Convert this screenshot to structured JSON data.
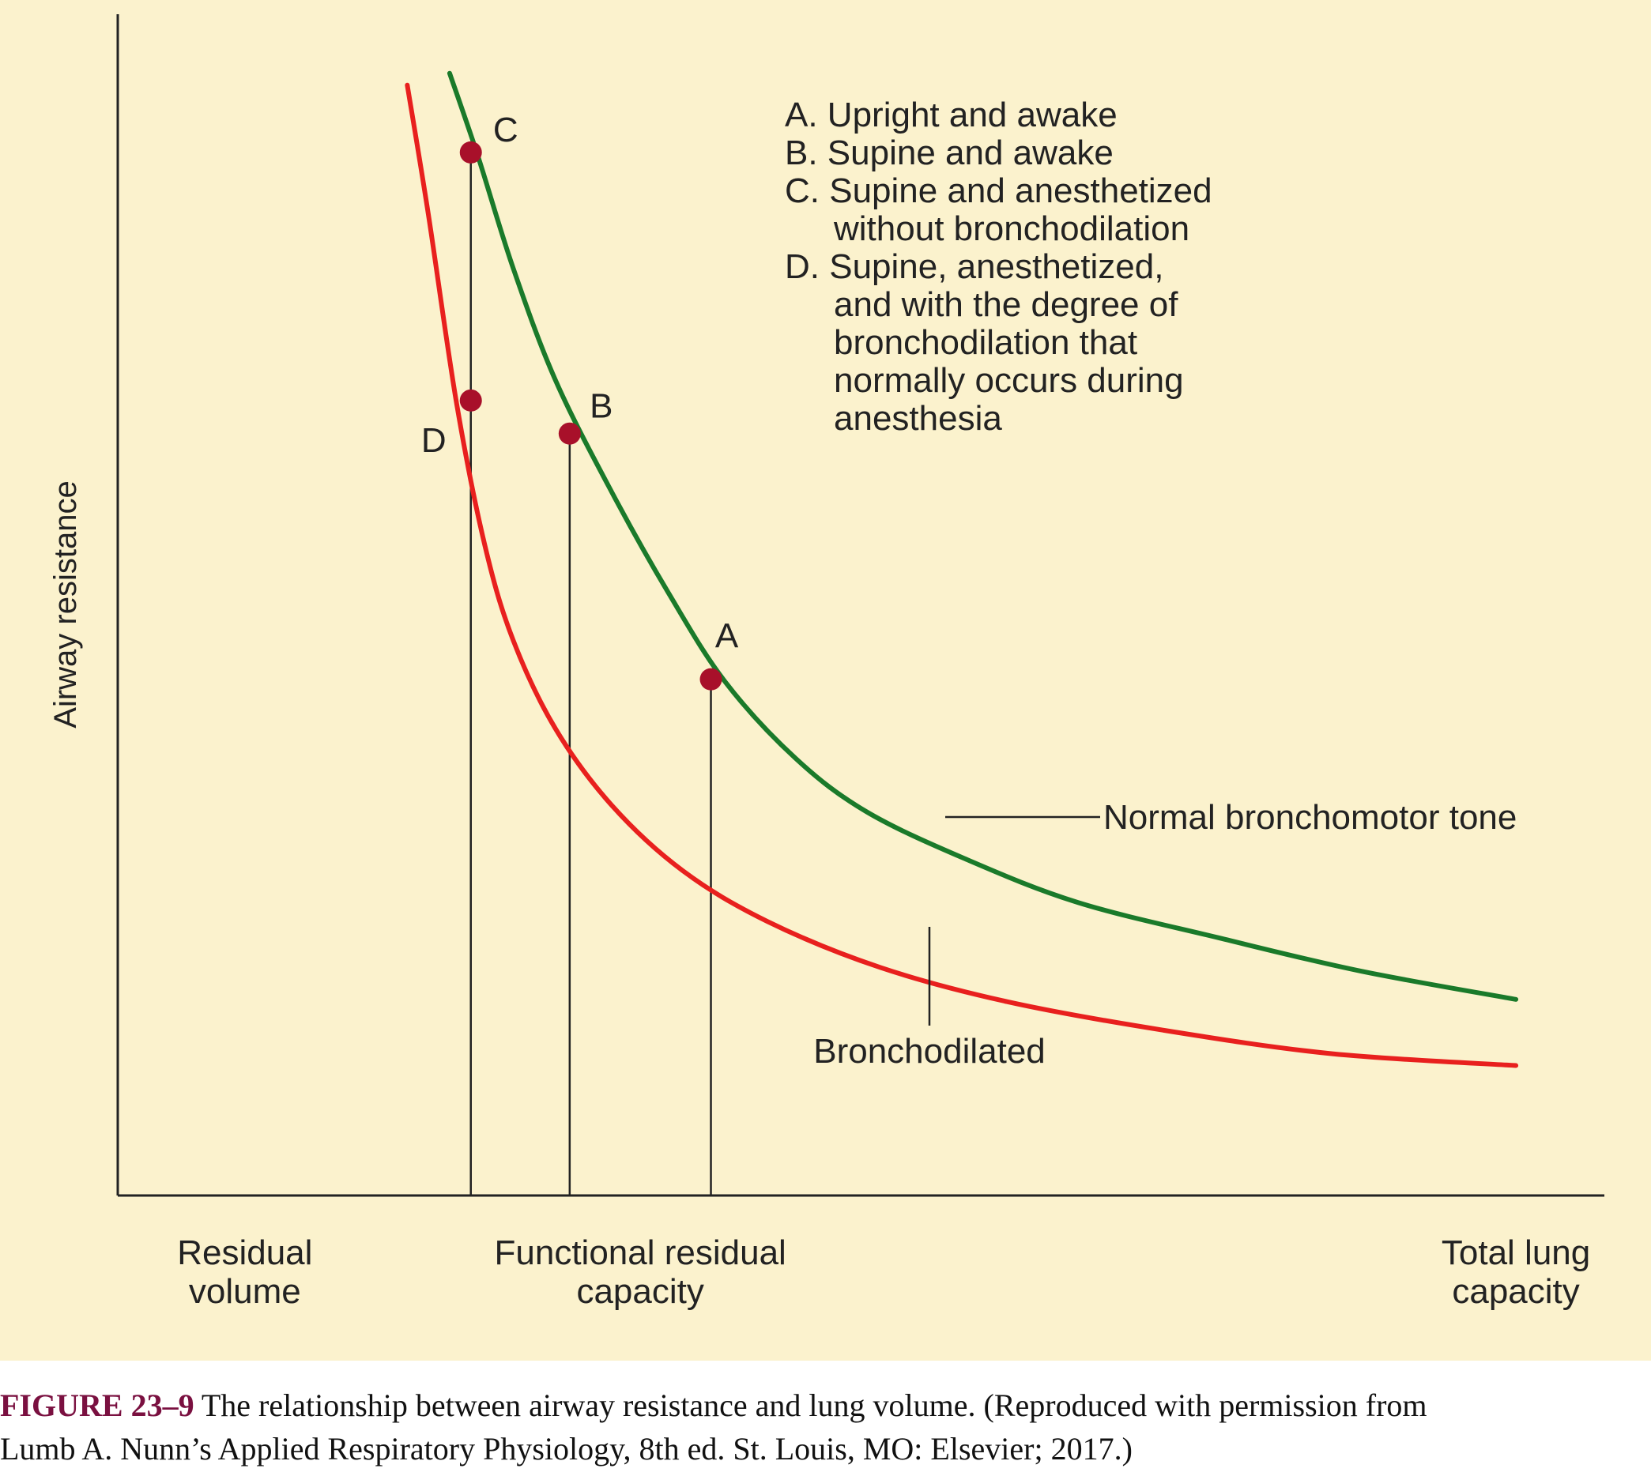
{
  "chart_data": {
    "type": "line",
    "xlabel": "",
    "ylabel": "Airway resistance",
    "x_tick_labels": [
      {
        "position": 0.09,
        "lines": [
          "Residual",
          "volume"
        ]
      },
      {
        "position": 0.37,
        "lines": [
          "Functional residual",
          "capacity"
        ]
      },
      {
        "position": 0.99,
        "lines": [
          "Total lung",
          "capacity"
        ]
      }
    ],
    "xlim": [
      0,
      1
    ],
    "ylim": [
      0,
      1
    ],
    "grid": false,
    "series": [
      {
        "name": "Normal bronchomotor tone",
        "color": "#1a7a2a",
        "x": [
          0.235,
          0.255,
          0.28,
          0.31,
          0.35,
          0.39,
          0.43,
          0.48,
          0.53,
          0.6,
          0.68,
          0.78,
          0.88,
          0.99
        ],
        "y": [
          0.95,
          0.88,
          0.785,
          0.69,
          0.595,
          0.51,
          0.435,
          0.37,
          0.325,
          0.285,
          0.248,
          0.218,
          0.19,
          0.166
        ]
      },
      {
        "name": "Bronchodilated",
        "color": "#e8201e",
        "x": [
          0.205,
          0.22,
          0.24,
          0.26,
          0.28,
          0.31,
          0.35,
          0.4,
          0.46,
          0.54,
          0.63,
          0.74,
          0.86,
          0.99
        ],
        "y": [
          0.94,
          0.83,
          0.67,
          0.55,
          0.47,
          0.395,
          0.33,
          0.275,
          0.232,
          0.193,
          0.164,
          0.14,
          0.12,
          0.11
        ]
      }
    ],
    "points": [
      {
        "label": "A",
        "x": 0.42,
        "y": 0.437
      },
      {
        "label": "B",
        "x": 0.32,
        "y": 0.645
      },
      {
        "label": "C",
        "x": 0.25,
        "y": 0.883
      },
      {
        "label": "D",
        "x": 0.25,
        "y": 0.673
      }
    ],
    "point_color": "#a8102a",
    "legend_notes": [
      "A. Upright and awake",
      "B. Supine and awake",
      "C. Supine and anesthetized",
      "without bronchodilation",
      "D. Supine, anesthetized,",
      "and with the degree of",
      "bronchodilation that",
      "normally occurs during",
      "anesthesia"
    ],
    "background_color": "#fbf2cd"
  },
  "caption": {
    "label": "FIGURE 23–9",
    "text_line1": " The relationship between airway resistance and lung volume. (Reproduced with permission from",
    "text_line2": "Lumb A. Nunn’s Applied Respiratory Physiology, 8th ed. St. Louis, MO: Elsevier; 2017.)",
    "label_color": "#7a1040"
  }
}
